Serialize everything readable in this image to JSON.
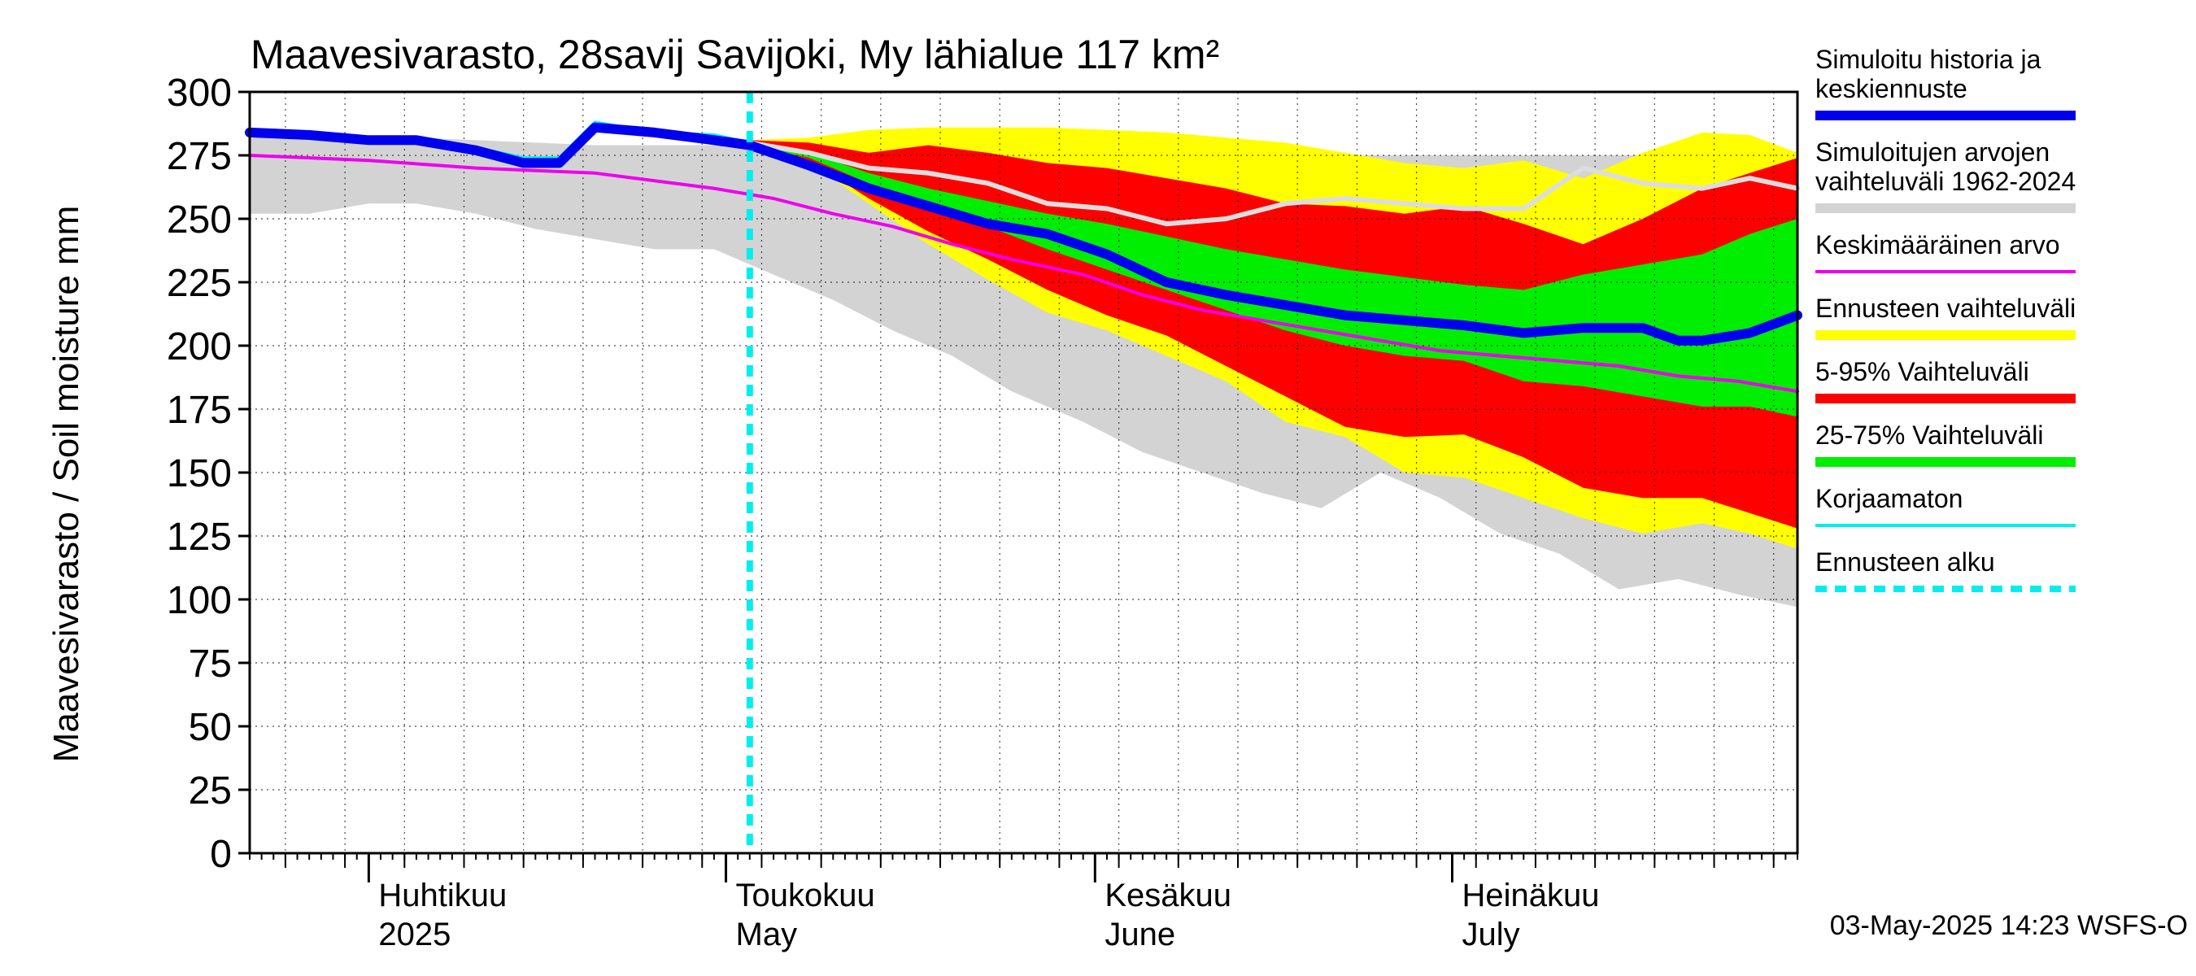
{
  "chart_data": {
    "type": "area",
    "title": "Maavesivarasto, 28savij Savijoki, My lähialue 117 km²",
    "ylabel": "Maavesivarasto / Soil moisture   mm",
    "ylim": [
      0,
      300
    ],
    "yticks": [
      0,
      25,
      50,
      75,
      100,
      125,
      150,
      175,
      200,
      225,
      250,
      275,
      300
    ],
    "xlim": [
      "2025-03-22",
      "2025-07-30"
    ],
    "forecast_start": "2025-05-03",
    "month_labels": [
      {
        "date": "2025-04-01",
        "fi": "Huhtikuu",
        "en": "2025"
      },
      {
        "date": "2025-05-01",
        "fi": "Toukokuu",
        "en": "May"
      },
      {
        "date": "2025-06-01",
        "fi": "Kesäkuu",
        "en": "June"
      },
      {
        "date": "2025-07-01",
        "fi": "Heinäkuu",
        "en": "July"
      }
    ],
    "timestamp": "03-May-2025 14:23 WSFS-O",
    "colors": {
      "history": "#0000ee",
      "range": "#d3d3d3",
      "mean": "#ee00ee",
      "forecast_range": "#ffff00",
      "p5_95": "#ff0000",
      "p25_75": "#00ee00",
      "uncorrected": "#00eeee",
      "forecast_start": "#00eeee",
      "white_max": "#dddddd"
    },
    "legend": [
      {
        "label": "Simuloitu historia ja keskiennuste",
        "lines": [
          "Simuloitu historia ja",
          "keskiennuste"
        ],
        "color": "#0000ee",
        "style": "thick"
      },
      {
        "label": "Simuloitujen arvojen vaihteluväli 1962-2024",
        "lines": [
          "Simuloitujen arvojen",
          "vaihteluväli 1962-2024"
        ],
        "color": "#d3d3d3",
        "style": "thick"
      },
      {
        "label": "Keskimääräinen arvo",
        "lines": [
          "Keskimääräinen arvo"
        ],
        "color": "#ee00ee",
        "style": "thin"
      },
      {
        "label": "Ennusteen vaihteluväli",
        "lines": [
          "Ennusteen vaihteluväli"
        ],
        "color": "#ffff00",
        "style": "thick"
      },
      {
        "label": "5-95% Vaihteluväli",
        "lines": [
          "5-95% Vaihteluväli"
        ],
        "color": "#ff0000",
        "style": "thick"
      },
      {
        "label": "25-75% Vaihteluväli",
        "lines": [
          "25-75% Vaihteluväli"
        ],
        "color": "#00ee00",
        "style": "thick"
      },
      {
        "label": "Korjaamaton",
        "lines": [
          "Korjaamaton"
        ],
        "color": "#00eeee",
        "style": "thin"
      },
      {
        "label": "Ennusteen alku",
        "lines": [
          "Ennusteen alku"
        ],
        "color": "#00eeee",
        "style": "dashed"
      }
    ],
    "series": {
      "range_1962_2024": {
        "x": [
          "2025-03-22",
          "2025-03-27",
          "2025-04-01",
          "2025-04-05",
          "2025-04-10",
          "2025-04-15",
          "2025-04-20",
          "2025-04-25",
          "2025-04-30",
          "2025-05-05",
          "2025-05-10",
          "2025-05-15",
          "2025-05-20",
          "2025-05-25",
          "2025-05-31",
          "2025-06-05",
          "2025-06-10",
          "2025-06-15",
          "2025-06-20",
          "2025-06-25",
          "2025-06-30",
          "2025-07-05",
          "2025-07-10",
          "2025-07-15",
          "2025-07-20",
          "2025-07-25",
          "2025-07-30"
        ],
        "upper": [
          283,
          283,
          282,
          282,
          281,
          280,
          279,
          279,
          279,
          279,
          278,
          277,
          277,
          276,
          276,
          276,
          276,
          276,
          275,
          275,
          275,
          275,
          275,
          275,
          275,
          275,
          275
        ],
        "lower": [
          252,
          252,
          256,
          256,
          252,
          246,
          242,
          238,
          238,
          228,
          218,
          206,
          196,
          182,
          170,
          158,
          150,
          142,
          136,
          150,
          140,
          126,
          118,
          104,
          108,
          102,
          97
        ]
      },
      "forecast_range": {
        "x": [
          "2025-05-03",
          "2025-05-08",
          "2025-05-13",
          "2025-05-18",
          "2025-05-23",
          "2025-05-28",
          "2025-06-02",
          "2025-06-07",
          "2025-06-12",
          "2025-06-17",
          "2025-06-22",
          "2025-06-27",
          "2025-07-02",
          "2025-07-07",
          "2025-07-12",
          "2025-07-17",
          "2025-07-22",
          "2025-07-26",
          "2025-07-30"
        ],
        "upper": [
          281,
          282,
          285,
          286,
          286,
          286,
          285,
          284,
          282,
          280,
          276,
          272,
          270,
          273,
          266,
          276,
          284,
          283,
          276
        ],
        "lower": [
          279,
          272,
          256,
          240,
          226,
          213,
          206,
          196,
          186,
          170,
          164,
          150,
          148,
          140,
          132,
          126,
          130,
          126,
          120
        ]
      },
      "p5_95": {
        "x": [
          "2025-05-03",
          "2025-05-08",
          "2025-05-13",
          "2025-05-18",
          "2025-05-23",
          "2025-05-28",
          "2025-06-02",
          "2025-06-07",
          "2025-06-12",
          "2025-06-17",
          "2025-06-22",
          "2025-06-27",
          "2025-07-02",
          "2025-07-07",
          "2025-07-12",
          "2025-07-17",
          "2025-07-22",
          "2025-07-26",
          "2025-07-30"
        ],
        "upper": [
          281,
          280,
          276,
          279,
          276,
          272,
          270,
          266,
          262,
          256,
          255,
          252,
          255,
          248,
          240,
          250,
          262,
          268,
          274
        ],
        "lower": [
          279,
          273,
          258,
          245,
          234,
          222,
          212,
          204,
          192,
          180,
          168,
          164,
          165,
          156,
          144,
          140,
          140,
          134,
          128
        ]
      },
      "p25_75": {
        "x": [
          "2025-05-03",
          "2025-05-08",
          "2025-05-13",
          "2025-05-18",
          "2025-05-23",
          "2025-05-28",
          "2025-06-02",
          "2025-06-07",
          "2025-06-12",
          "2025-06-17",
          "2025-06-22",
          "2025-06-27",
          "2025-07-02",
          "2025-07-07",
          "2025-07-12",
          "2025-07-17",
          "2025-07-22",
          "2025-07-26",
          "2025-07-30"
        ],
        "upper": [
          280,
          276,
          268,
          262,
          257,
          252,
          248,
          243,
          238,
          234,
          230,
          227,
          224,
          222,
          228,
          232,
          236,
          244,
          250
        ],
        "lower": [
          279,
          274,
          264,
          255,
          247,
          238,
          230,
          222,
          214,
          206,
          200,
          196,
          194,
          186,
          184,
          180,
          176,
          176,
          172
        ]
      },
      "history_mean_forecast": {
        "x": [
          "2025-03-22",
          "2025-03-27",
          "2025-04-01",
          "2025-04-05",
          "2025-04-10",
          "2025-04-14",
          "2025-04-17",
          "2025-04-20",
          "2025-04-25",
          "2025-04-30",
          "2025-05-03",
          "2025-05-08",
          "2025-05-13",
          "2025-05-18",
          "2025-05-23",
          "2025-05-28",
          "2025-06-02",
          "2025-06-07",
          "2025-06-12",
          "2025-06-17",
          "2025-06-22",
          "2025-06-27",
          "2025-07-02",
          "2025-07-07",
          "2025-07-12",
          "2025-07-17",
          "2025-07-20",
          "2025-07-22",
          "2025-07-26",
          "2025-07-30"
        ],
        "values": [
          284,
          283,
          281,
          281,
          277,
          272,
          272,
          286,
          284,
          281,
          279,
          271,
          262,
          255,
          248,
          244,
          236,
          225,
          220,
          216,
          212,
          210,
          208,
          205,
          207,
          207,
          202,
          202,
          205,
          212
        ]
      },
      "uncorrected": {
        "x": [
          "2025-03-22",
          "2025-03-27",
          "2025-04-01",
          "2025-04-05",
          "2025-04-10",
          "2025-04-14",
          "2025-04-17",
          "2025-04-20",
          "2025-04-25",
          "2025-04-30",
          "2025-05-03"
        ],
        "values": [
          285,
          284,
          282,
          282,
          278,
          274,
          274,
          288,
          284,
          283,
          280
        ]
      },
      "mean": {
        "x": [
          "2025-03-22",
          "2025-04-01",
          "2025-04-10",
          "2025-04-20",
          "2025-04-30",
          "2025-05-05",
          "2025-05-10",
          "2025-05-15",
          "2025-05-20",
          "2025-05-25",
          "2025-05-31",
          "2025-06-05",
          "2025-06-10",
          "2025-06-15",
          "2025-06-20",
          "2025-06-25",
          "2025-06-30",
          "2025-07-05",
          "2025-07-10",
          "2025-07-15",
          "2025-07-20",
          "2025-07-25",
          "2025-07-30"
        ],
        "values": [
          275,
          273,
          270,
          268,
          262,
          258,
          252,
          247,
          240,
          234,
          228,
          220,
          214,
          210,
          206,
          202,
          198,
          196,
          194,
          192,
          188,
          186,
          182
        ]
      },
      "grey_line": {
        "x": [
          "2025-05-03",
          "2025-05-08",
          "2025-05-13",
          "2025-05-18",
          "2025-05-23",
          "2025-05-28",
          "2025-06-02",
          "2025-06-07",
          "2025-06-12",
          "2025-06-17",
          "2025-06-22",
          "2025-06-27",
          "2025-07-02",
          "2025-07-07",
          "2025-07-12",
          "2025-07-17",
          "2025-07-22",
          "2025-07-26",
          "2025-07-30"
        ],
        "values": [
          280,
          276,
          270,
          268,
          264,
          256,
          254,
          248,
          250,
          256,
          258,
          256,
          254,
          254,
          270,
          264,
          262,
          266,
          262
        ]
      }
    }
  }
}
